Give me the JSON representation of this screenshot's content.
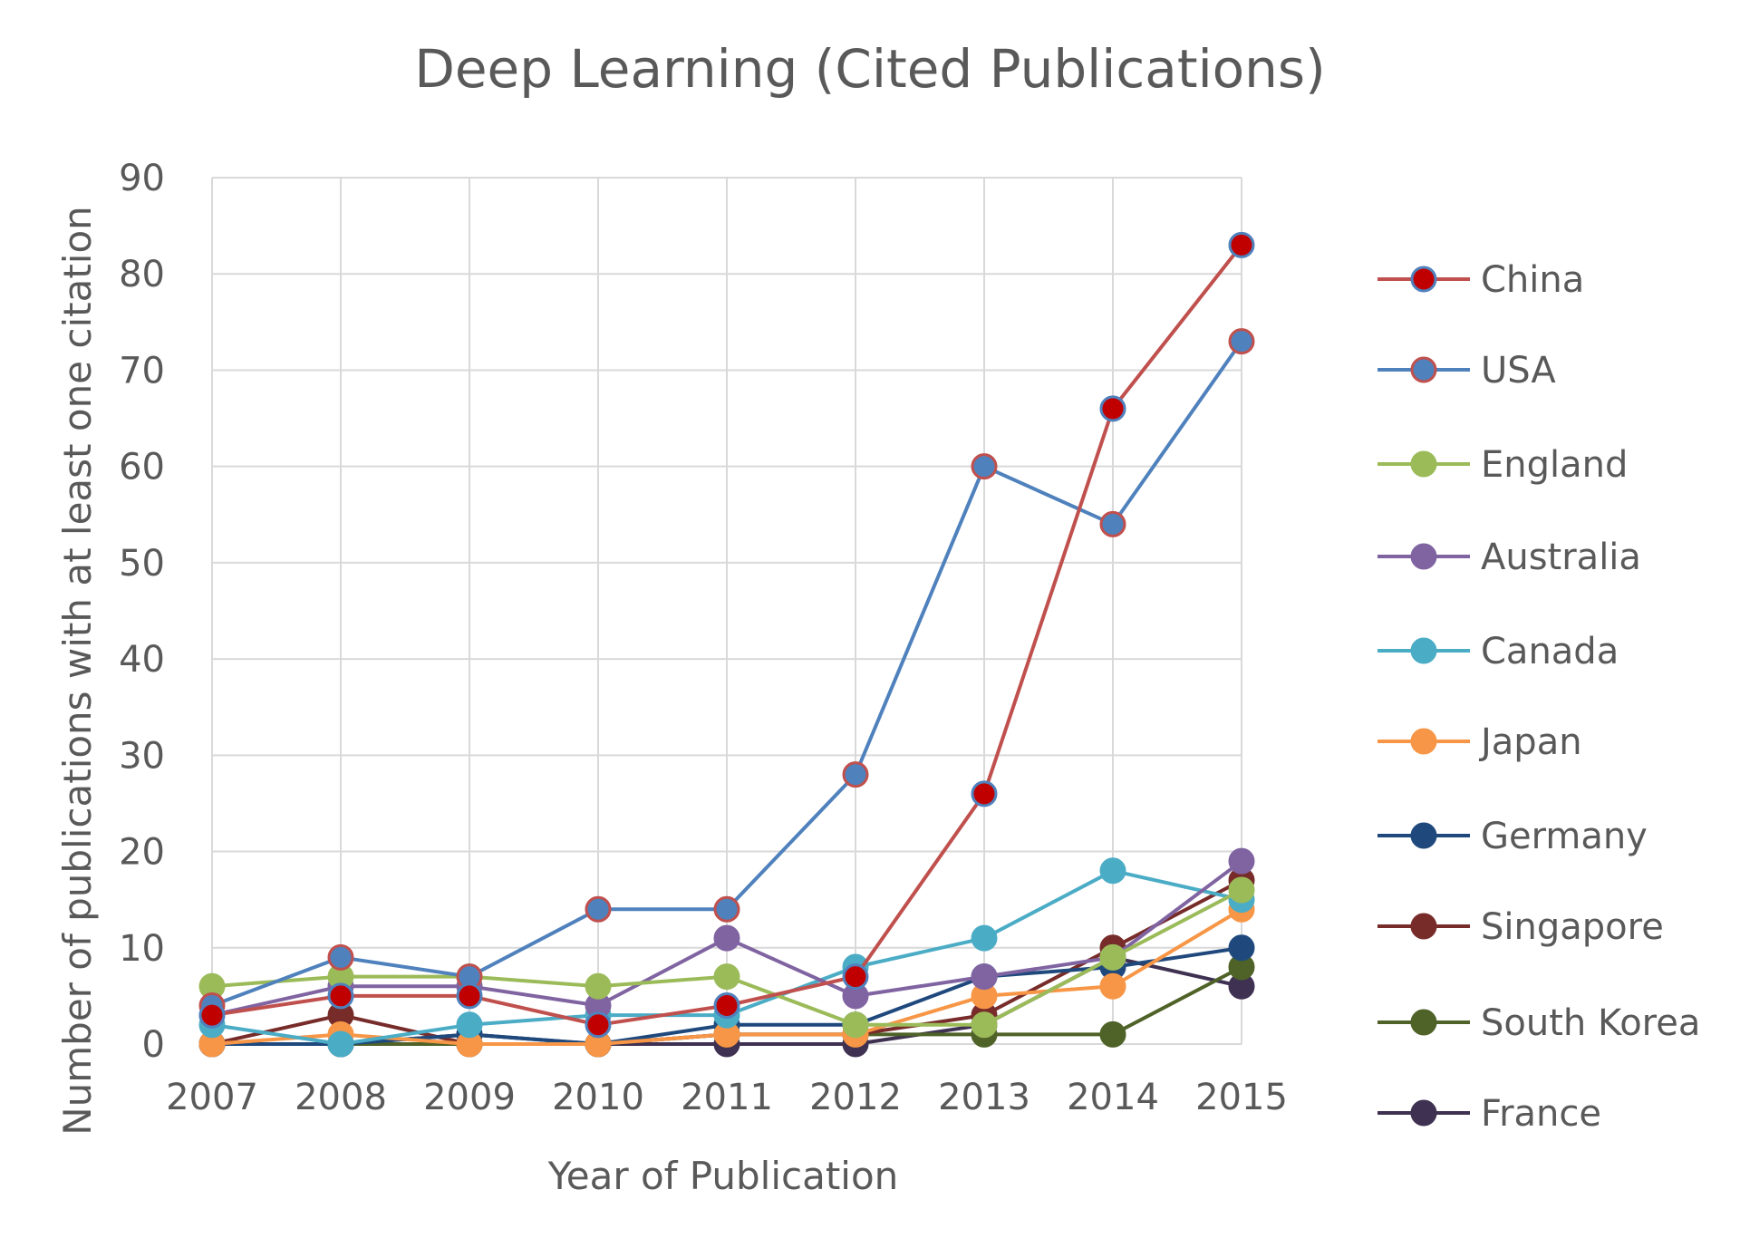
{
  "chart_data": {
    "type": "line",
    "title": "Deep Learning (Cited Publications)",
    "xlabel": "Year of Publication",
    "ylabel": "Number of publications with at least one citation",
    "categories": [
      "2007",
      "2008",
      "2009",
      "2010",
      "2011",
      "2012",
      "2013",
      "2014",
      "2015"
    ],
    "ylim": [
      0,
      90
    ],
    "yticks": [
      0,
      10,
      20,
      30,
      40,
      50,
      60,
      70,
      80,
      90
    ],
    "grid": true,
    "legend_position": "right",
    "series": [
      {
        "name": "China",
        "color": "#c0504d",
        "marker_fill": "#c00000",
        "marker_edge": "#4f81bd",
        "values": [
          3,
          5,
          5,
          2,
          4,
          7,
          26,
          66,
          83
        ]
      },
      {
        "name": "USA",
        "color": "#4f81bd",
        "marker_fill": "#4f81bd",
        "marker_edge": "#c0504d",
        "values": [
          4,
          9,
          7,
          14,
          14,
          28,
          60,
          54,
          73
        ]
      },
      {
        "name": "England",
        "color": "#9bbb59",
        "marker_fill": "#9bbb59",
        "marker_edge": "#9bbb59",
        "values": [
          6,
          7,
          7,
          6,
          7,
          2,
          2,
          9,
          16
        ]
      },
      {
        "name": "Australia",
        "color": "#8064a2",
        "marker_fill": "#8064a2",
        "marker_edge": "#8064a2",
        "values": [
          3,
          6,
          6,
          4,
          11,
          5,
          7,
          9,
          19
        ]
      },
      {
        "name": "Canada",
        "color": "#4bacc6",
        "marker_fill": "#4bacc6",
        "marker_edge": "#4bacc6",
        "values": [
          2,
          0,
          2,
          3,
          3,
          8,
          11,
          18,
          15
        ]
      },
      {
        "name": "Japan",
        "color": "#f79646",
        "marker_fill": "#f79646",
        "marker_edge": "#f79646",
        "values": [
          0,
          1,
          0,
          0,
          1,
          1,
          5,
          6,
          14
        ]
      },
      {
        "name": "Germany",
        "color": "#1f497d",
        "marker_fill": "#1f497d",
        "marker_edge": "#1f497d",
        "values": [
          0,
          0,
          1,
          0,
          2,
          2,
          7,
          8,
          10
        ]
      },
      {
        "name": "Singapore",
        "color": "#772c2a",
        "marker_fill": "#772c2a",
        "marker_edge": "#772c2a",
        "values": [
          0,
          3,
          0,
          0,
          1,
          1,
          3,
          10,
          17
        ]
      },
      {
        "name": "South Korea",
        "color": "#4f6228",
        "marker_fill": "#4f6228",
        "marker_edge": "#4f6228",
        "values": [
          0,
          0,
          0,
          0,
          1,
          1,
          1,
          1,
          8
        ]
      },
      {
        "name": "France",
        "color": "#3f3151",
        "marker_fill": "#3f3151",
        "marker_edge": "#3f3151",
        "values": [
          0,
          0,
          1,
          0,
          0,
          0,
          2,
          9,
          6
        ]
      }
    ]
  }
}
